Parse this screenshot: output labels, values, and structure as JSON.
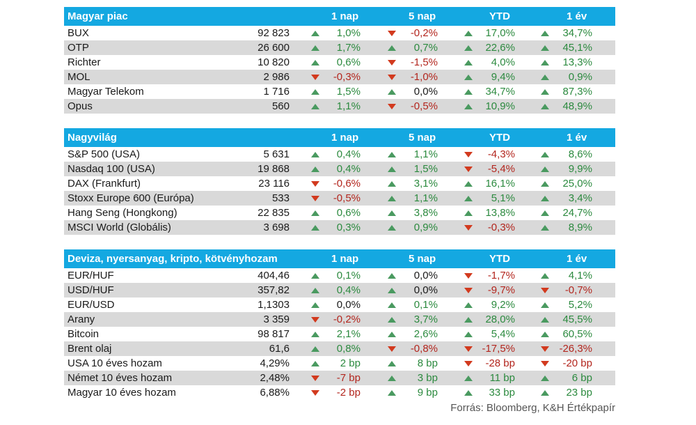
{
  "sections": [
    {
      "title": "Magyar piac",
      "columns": [
        "1 nap",
        "5 nap",
        "YTD",
        "1 év"
      ],
      "rows": [
        {
          "name": "BUX",
          "value": "92 823",
          "changes": [
            {
              "text": "1,0%",
              "dir": "up"
            },
            {
              "text": "-0,2%",
              "dir": "down"
            },
            {
              "text": "17,0%",
              "dir": "up"
            },
            {
              "text": "34,7%",
              "dir": "up"
            }
          ]
        },
        {
          "name": "OTP",
          "value": "26 600",
          "changes": [
            {
              "text": "1,7%",
              "dir": "up"
            },
            {
              "text": "0,7%",
              "dir": "up"
            },
            {
              "text": "22,6%",
              "dir": "up"
            },
            {
              "text": "45,1%",
              "dir": "up"
            }
          ]
        },
        {
          "name": "Richter",
          "value": "10 820",
          "changes": [
            {
              "text": "0,6%",
              "dir": "up"
            },
            {
              "text": "-1,5%",
              "dir": "down"
            },
            {
              "text": "4,0%",
              "dir": "up"
            },
            {
              "text": "13,3%",
              "dir": "up"
            }
          ]
        },
        {
          "name": "MOL",
          "value": "2 986",
          "changes": [
            {
              "text": "-0,3%",
              "dir": "down"
            },
            {
              "text": "-1,0%",
              "dir": "down"
            },
            {
              "text": "9,4%",
              "dir": "up"
            },
            {
              "text": "0,9%",
              "dir": "up"
            }
          ]
        },
        {
          "name": "Magyar Telekom",
          "value": "1 716",
          "changes": [
            {
              "text": "1,5%",
              "dir": "up"
            },
            {
              "text": "0,0%",
              "dir": "up"
            },
            {
              "text": "34,7%",
              "dir": "up"
            },
            {
              "text": "87,3%",
              "dir": "up"
            }
          ]
        },
        {
          "name": "Opus",
          "value": "560",
          "changes": [
            {
              "text": "1,1%",
              "dir": "up"
            },
            {
              "text": "-0,5%",
              "dir": "down"
            },
            {
              "text": "10,9%",
              "dir": "up"
            },
            {
              "text": "48,9%",
              "dir": "up"
            }
          ]
        }
      ]
    },
    {
      "title": "Nagyvilág",
      "columns": [
        "1 nap",
        "5 nap",
        "YTD",
        "1 év"
      ],
      "rows": [
        {
          "name": "S&P 500 (USA)",
          "value": "5 631",
          "changes": [
            {
              "text": "0,4%",
              "dir": "up"
            },
            {
              "text": "1,1%",
              "dir": "up"
            },
            {
              "text": "-4,3%",
              "dir": "down"
            },
            {
              "text": "8,6%",
              "dir": "up"
            }
          ]
        },
        {
          "name": "Nasdaq 100 (USA)",
          "value": "19 868",
          "changes": [
            {
              "text": "0,4%",
              "dir": "up"
            },
            {
              "text": "1,5%",
              "dir": "up"
            },
            {
              "text": "-5,4%",
              "dir": "down"
            },
            {
              "text": "9,9%",
              "dir": "up"
            }
          ]
        },
        {
          "name": "DAX (Frankfurt)",
          "value": "23 116",
          "changes": [
            {
              "text": "-0,6%",
              "dir": "down"
            },
            {
              "text": "3,1%",
              "dir": "up"
            },
            {
              "text": "16,1%",
              "dir": "up"
            },
            {
              "text": "25,0%",
              "dir": "up"
            }
          ]
        },
        {
          "name": "Stoxx Europe 600 (Európa)",
          "value": "533",
          "changes": [
            {
              "text": "-0,5%",
              "dir": "down"
            },
            {
              "text": "1,1%",
              "dir": "up"
            },
            {
              "text": "5,1%",
              "dir": "up"
            },
            {
              "text": "3,4%",
              "dir": "up"
            }
          ]
        },
        {
          "name": "Hang Seng (Hongkong)",
          "value": "22 835",
          "changes": [
            {
              "text": "0,6%",
              "dir": "up"
            },
            {
              "text": "3,8%",
              "dir": "up"
            },
            {
              "text": "13,8%",
              "dir": "up"
            },
            {
              "text": "24,7%",
              "dir": "up"
            }
          ]
        },
        {
          "name": "MSCI World (Globális)",
          "value": "3 698",
          "changes": [
            {
              "text": "0,3%",
              "dir": "up"
            },
            {
              "text": "0,9%",
              "dir": "up"
            },
            {
              "text": "-0,3%",
              "dir": "down"
            },
            {
              "text": "8,9%",
              "dir": "up"
            }
          ]
        }
      ]
    },
    {
      "title": "Deviza, nyersanyag, kripto, kötvényhozam",
      "columns": [
        "1 nap",
        "5 nap",
        "YTD",
        "1 év"
      ],
      "rows": [
        {
          "name": "EUR/HUF",
          "value": "404,46",
          "changes": [
            {
              "text": "0,1%",
              "dir": "up"
            },
            {
              "text": "0,0%",
              "dir": "up"
            },
            {
              "text": "-1,7%",
              "dir": "down"
            },
            {
              "text": "4,1%",
              "dir": "up"
            }
          ]
        },
        {
          "name": "USD/HUF",
          "value": "357,82",
          "changes": [
            {
              "text": "0,4%",
              "dir": "up"
            },
            {
              "text": "0,0%",
              "dir": "up"
            },
            {
              "text": "-9,7%",
              "dir": "down"
            },
            {
              "text": "-0,7%",
              "dir": "down"
            }
          ]
        },
        {
          "name": "EUR/USD",
          "value": "1,1303",
          "changes": [
            {
              "text": "0,0%",
              "dir": "up"
            },
            {
              "text": "0,1%",
              "dir": "up"
            },
            {
              "text": "9,2%",
              "dir": "up"
            },
            {
              "text": "5,2%",
              "dir": "up"
            }
          ]
        },
        {
          "name": "Arany",
          "value": "3 359",
          "changes": [
            {
              "text": "-0,2%",
              "dir": "down"
            },
            {
              "text": "3,7%",
              "dir": "up"
            },
            {
              "text": "28,0%",
              "dir": "up"
            },
            {
              "text": "45,5%",
              "dir": "up"
            }
          ]
        },
        {
          "name": "Bitcoin",
          "value": "98 817",
          "changes": [
            {
              "text": "2,1%",
              "dir": "up"
            },
            {
              "text": "2,6%",
              "dir": "up"
            },
            {
              "text": "5,4%",
              "dir": "up"
            },
            {
              "text": "60,5%",
              "dir": "up"
            }
          ]
        },
        {
          "name": "Brent olaj",
          "value": "61,6",
          "changes": [
            {
              "text": "0,8%",
              "dir": "up"
            },
            {
              "text": "-0,8%",
              "dir": "down"
            },
            {
              "text": "-17,5%",
              "dir": "down"
            },
            {
              "text": "-26,3%",
              "dir": "down"
            }
          ]
        },
        {
          "name": "USA 10 éves hozam",
          "value": "4,29%",
          "changes": [
            {
              "text": "2 bp",
              "dir": "up"
            },
            {
              "text": "8 bp",
              "dir": "up"
            },
            {
              "text": "-28 bp",
              "dir": "down"
            },
            {
              "text": "-20 bp",
              "dir": "down"
            }
          ]
        },
        {
          "name": "Német 10 éves hozam",
          "value": "2,48%",
          "changes": [
            {
              "text": "-7 bp",
              "dir": "down"
            },
            {
              "text": "3 bp",
              "dir": "up"
            },
            {
              "text": "11 bp",
              "dir": "up"
            },
            {
              "text": "6 bp",
              "dir": "up"
            }
          ]
        },
        {
          "name": "Magyar 10 éves hozam",
          "value": "6,88%",
          "changes": [
            {
              "text": "-2 bp",
              "dir": "down"
            },
            {
              "text": "9 bp",
              "dir": "up"
            },
            {
              "text": "33 bp",
              "dir": "up"
            },
            {
              "text": "23 bp",
              "dir": "up"
            }
          ]
        }
      ]
    }
  ],
  "source": "Forrás: Bloomberg, K&H Értékpapír",
  "colors": {
    "header": "#14a8e1",
    "stripe": "#d9d9d9",
    "up": "#4a9a60",
    "down": "#d23a1e",
    "pos_text": "#2c8a3f",
    "neg_text": "#b3261e"
  }
}
